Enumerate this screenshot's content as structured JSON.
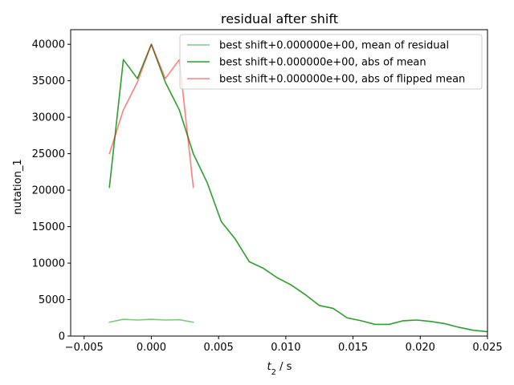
{
  "chart_data": {
    "type": "line",
    "title": "residual after shift",
    "xlabel_main": "t",
    "xlabel_sub": "2",
    "xlabel_unit": " / s",
    "ylabel": "nutation_1",
    "xlim": [
      -0.006,
      0.025
    ],
    "ylim": [
      0,
      42000
    ],
    "x_ticks": [
      -0.005,
      0.0,
      0.005,
      0.01,
      0.015,
      0.02,
      0.025
    ],
    "x_tick_labels": [
      "−0.005",
      "0.000",
      "0.005",
      "0.010",
      "0.015",
      "0.020",
      "0.025"
    ],
    "y_ticks": [
      0,
      5000,
      10000,
      15000,
      20000,
      25000,
      30000,
      35000,
      40000
    ],
    "y_tick_labels": [
      "0",
      "5000",
      "10000",
      "15000",
      "20000",
      "25000",
      "30000",
      "35000",
      "40000"
    ],
    "grid": false,
    "legend_position": "top-right",
    "series": [
      {
        "name": "best shift+0.000000e+00, mean of residual",
        "color": "#2ca02c",
        "opacity": 0.6,
        "x": [
          -0.00312,
          -0.00208,
          -0.00104,
          0.0,
          0.00104,
          0.00208,
          0.00312
        ],
        "y": [
          1900,
          2300,
          2200,
          2300,
          2200,
          2250,
          1900
        ]
      },
      {
        "name": "best shift+0.000000e+00, abs of mean",
        "color": "#2ca02c",
        "opacity": 1.0,
        "x": [
          -0.00312,
          -0.00208,
          -0.00104,
          0.0,
          0.00104,
          0.00208,
          0.00312,
          0.00416,
          0.0052,
          0.00624,
          0.00728,
          0.00832,
          0.00936,
          0.0104,
          0.01144,
          0.01248,
          0.01352,
          0.01456,
          0.0156,
          0.01664,
          0.01768,
          0.01872,
          0.01976,
          0.0208,
          0.02184,
          0.02288,
          0.02392,
          0.02496
        ],
        "y": [
          20400,
          37900,
          35300,
          40000,
          34800,
          31000,
          25000,
          21000,
          15700,
          13300,
          10200,
          9300,
          8000,
          7000,
          5700,
          4200,
          3800,
          2500,
          2100,
          1600,
          1600,
          2100,
          2200,
          2000,
          1700,
          1200,
          800,
          600
        ]
      },
      {
        "name": "best shift+0.000000e+00, abs of flipped mean",
        "color": "#ff0000",
        "opacity": 0.5,
        "x": [
          -0.00312,
          -0.00208,
          -0.00104,
          0.0,
          0.00104,
          0.00208,
          0.00312
        ],
        "y": [
          25000,
          31000,
          34800,
          40000,
          35300,
          37900,
          20400
        ]
      }
    ]
  }
}
